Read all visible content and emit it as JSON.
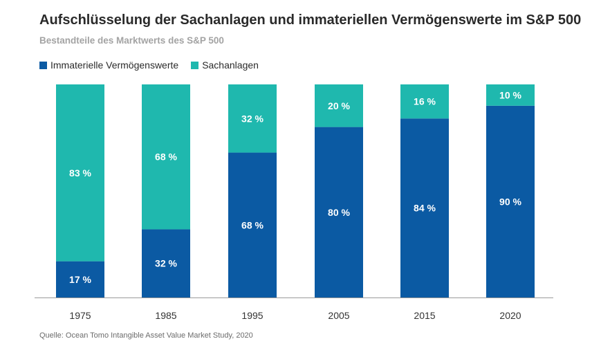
{
  "chart_data": {
    "type": "bar",
    "stacked": true,
    "title": "Aufschlüsselung der Sachanlagen und immateriellen Vermögenswerte im S&P 500",
    "subtitle": "Bestandteile des Marktwerts des S&P 500",
    "categories": [
      "1975",
      "1985",
      "1995",
      "2005",
      "2015",
      "2020"
    ],
    "series": [
      {
        "name": "Immaterielle Vermögenswerte",
        "color": "#0b5aa3",
        "values": [
          17,
          32,
          68,
          80,
          84,
          90
        ]
      },
      {
        "name": "Sachanlagen",
        "color": "#1fb8ae",
        "values": [
          83,
          68,
          32,
          20,
          16,
          10
        ]
      }
    ],
    "value_suffix": " %",
    "ylim": [
      0,
      100
    ],
    "xlabel": "",
    "ylabel": "",
    "grid": false,
    "legend_position": "top-left",
    "source": "Quelle: Ocean Tomo Intangible Asset Value Market Study, 2020"
  }
}
